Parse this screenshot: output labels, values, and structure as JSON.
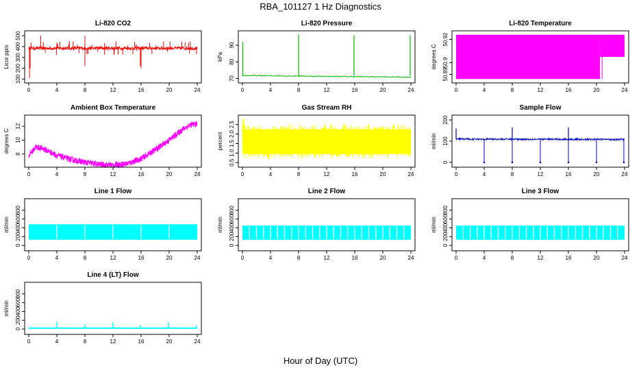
{
  "figure": {
    "title": "RBA_101127  1 Hz Diagnostics",
    "xlabel": "Hour of Day (UTC)"
  },
  "chart_data": [
    {
      "id": "co2",
      "type": "line",
      "title": "Li-820 CO2",
      "ylabel": "Licor ppm",
      "color": "#ff0000",
      "xticks": [
        "0",
        "4",
        "8",
        "12",
        "16",
        "20",
        "24"
      ],
      "xlim": [
        0,
        24
      ],
      "yticks": [
        "100",
        "200",
        "300",
        "400",
        "500"
      ],
      "ylim": [
        90,
        520
      ],
      "series": [
        {
          "name": "CO2",
          "baseline": 385,
          "noise_band": [
            370,
            400
          ],
          "spikes": [
            [
              0.1,
              110
            ],
            [
              0.2,
              200
            ],
            [
              1.7,
              500
            ],
            [
              8.0,
              500
            ],
            [
              8.0,
              220
            ],
            [
              15.9,
              220
            ],
            [
              16.0,
              200
            ],
            [
              23.9,
              330
            ]
          ]
        }
      ]
    },
    {
      "id": "pressure",
      "type": "line",
      "title": "Li-820 Pressure",
      "ylabel": "kPa",
      "color": "#00bb00",
      "xticks": [
        "0",
        "4",
        "8",
        "12",
        "16",
        "20",
        "24"
      ],
      "xlim": [
        0,
        24
      ],
      "yticks": [
        "70",
        "80",
        "90"
      ],
      "ylim": [
        69,
        97
      ],
      "series": [
        {
          "name": "Pressure",
          "baseline_start": 71.8,
          "baseline_end": 70.8,
          "spikes": [
            [
              0.05,
              92
            ],
            [
              8.0,
              96.5
            ],
            [
              15.9,
              96.0
            ],
            [
              23.9,
              96.0
            ]
          ]
        }
      ]
    },
    {
      "id": "li_temp",
      "type": "area",
      "title": "Li-820 Temperature",
      "ylabel": "degrees C",
      "color": "#ff00ff",
      "xticks": [
        "0",
        "4",
        "8",
        "12",
        "16",
        "20",
        "24"
      ],
      "xlim": [
        0,
        24
      ],
      "yticks": [
        "50.89",
        "50.9",
        "50.92"
      ],
      "ylim": [
        50.885,
        50.925
      ],
      "series": [
        {
          "name": "Temp",
          "band_full": [
            0,
            20.5,
            50.886,
            50.924
          ],
          "band_upper": [
            20.5,
            24,
            50.905,
            50.924
          ],
          "drop_at": 20.8
        }
      ]
    },
    {
      "id": "box_temp",
      "type": "line",
      "title": "Ambient Box Temperature",
      "ylabel": "degrees C",
      "color": "#ff00ff",
      "xticks": [
        "0",
        "4",
        "8",
        "12",
        "16",
        "20",
        "24"
      ],
      "xlim": [
        0,
        24
      ],
      "yticks": [
        "8",
        "10",
        "12"
      ],
      "ylim": [
        6.5,
        13.2
      ],
      "series": [
        {
          "name": "Box Temp",
          "x": [
            0,
            1,
            2,
            4,
            6,
            8,
            10,
            12,
            14,
            16,
            18,
            20,
            22,
            23,
            24
          ],
          "y": [
            7.8,
            9.0,
            8.8,
            7.8,
            7.2,
            6.8,
            6.5,
            6.4,
            6.6,
            7.3,
            8.6,
            10.0,
            11.6,
            12.2,
            12.3
          ]
        }
      ]
    },
    {
      "id": "rh",
      "type": "area",
      "title": "Gas Stream RH",
      "ylabel": "percent",
      "color": "#ffff00",
      "xticks": [
        "0",
        "4",
        "8",
        "12",
        "16",
        "20",
        "24"
      ],
      "xlim": [
        0,
        24
      ],
      "yticks": [
        "0.5",
        "1.0",
        "1.5",
        "2.0",
        "2.5"
      ],
      "ylim": [
        0.4,
        2.85
      ],
      "series": [
        {
          "name": "RH",
          "band_low": 0.8,
          "band_high": 2.45,
          "start_high": 2.8
        }
      ]
    },
    {
      "id": "sample_flow",
      "type": "line",
      "title": "Sample Flow",
      "ylabel": "ml/min",
      "color": "#0000cc",
      "xticks": [
        "0",
        "4",
        "8",
        "12",
        "16",
        "20",
        "24"
      ],
      "xlim": [
        0,
        24
      ],
      "yticks": [
        "0",
        "100",
        "200"
      ],
      "ylim": [
        -10,
        210
      ],
      "series": [
        {
          "name": "Sample",
          "baseline_start": 110,
          "baseline_end": 108,
          "dips": [
            4.0,
            8.0,
            12.0,
            16.0,
            20.0,
            23.9
          ],
          "peaks": [
            [
              0.0,
              160
            ],
            [
              8.0,
              165
            ],
            [
              16.0,
              165
            ]
          ]
        }
      ]
    },
    {
      "id": "line1",
      "type": "area",
      "title": "Line 1 Flow",
      "ylabel": "ml/min",
      "color": "#00ffff",
      "xticks": [
        "0",
        "4",
        "8",
        "12",
        "16",
        "20",
        "24"
      ],
      "xlim": [
        0,
        24
      ],
      "yticks": [
        "0",
        "200",
        "400",
        "600",
        "800"
      ],
      "ylim": [
        -60,
        1000
      ],
      "series": [
        {
          "name": "Line 1",
          "band_low": 130,
          "band_high": 480,
          "gaps": [
            4,
            8,
            12,
            16,
            20
          ]
        }
      ]
    },
    {
      "id": "line2",
      "type": "area",
      "title": "Line 2 Flow",
      "ylabel": "ml/min",
      "color": "#00ffff",
      "xticks": [
        "0",
        "4",
        "8",
        "12",
        "16",
        "20",
        "24"
      ],
      "xlim": [
        0,
        24
      ],
      "yticks": [
        "0",
        "200",
        "400",
        "600",
        "800"
      ],
      "ylim": [
        -60,
        1000
      ],
      "series": [
        {
          "name": "Line 2",
          "band_low": 130,
          "band_high": 450,
          "gaps": [
            1,
            2,
            3,
            4,
            5,
            6,
            7,
            8,
            9,
            10,
            11,
            12,
            13,
            14,
            15,
            16,
            17,
            18,
            19,
            20,
            21,
            22,
            23
          ]
        }
      ]
    },
    {
      "id": "line3",
      "type": "area",
      "title": "Line 3 Flow",
      "ylabel": "ml/min",
      "color": "#00ffff",
      "xticks": [
        "0",
        "4",
        "8",
        "12",
        "16",
        "20",
        "24"
      ],
      "xlim": [
        0,
        24
      ],
      "yticks": [
        "0",
        "200",
        "400",
        "600",
        "800"
      ],
      "ylim": [
        -60,
        1000
      ],
      "series": [
        {
          "name": "Line 3",
          "band_low": 130,
          "band_high": 450,
          "gaps": [
            1,
            2,
            3,
            4,
            5,
            6,
            7,
            8,
            9,
            10,
            11,
            12,
            13,
            14,
            15,
            16,
            17,
            18,
            19,
            20,
            21,
            22,
            23
          ]
        }
      ]
    },
    {
      "id": "line4",
      "type": "line",
      "title": "Line 4 (LT) Flow",
      "ylabel": "ml/min",
      "color": "#00ffff",
      "xticks": [
        "0",
        "4",
        "8",
        "12",
        "16",
        "20",
        "24"
      ],
      "xlim": [
        0,
        24
      ],
      "yticks": [
        "0",
        "200",
        "400",
        "600",
        "800"
      ],
      "ylim": [
        -60,
        1000
      ],
      "series": [
        {
          "name": "Line 4",
          "baseline": 20,
          "spikes": [
            [
              4.0,
              160
            ],
            [
              8.0,
              100
            ],
            [
              12.0,
              150
            ],
            [
              15.9,
              90
            ],
            [
              19.9,
              150
            ],
            [
              23.9,
              80
            ]
          ]
        }
      ]
    }
  ]
}
